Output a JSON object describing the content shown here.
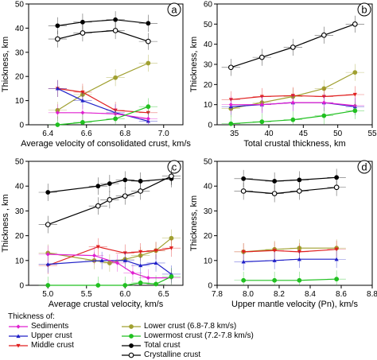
{
  "legend": {
    "title": "Thickness of:",
    "items": [
      {
        "label": "Sediments",
        "color": "#e020d0",
        "marker": "diamond-filled"
      },
      {
        "label": "Upper crust",
        "color": "#2020c8",
        "marker": "triangle-filled"
      },
      {
        "label": "Middle crust",
        "color": "#e02020",
        "marker": "triangle-down-filled"
      },
      {
        "label": "Lower crust (6.8-7.8 km/s)",
        "color": "#a0a030",
        "marker": "circle-filled"
      },
      {
        "label": "Lowermost crust (7.2-7.8 km/s)",
        "color": "#20c020",
        "marker": "circle-filled"
      },
      {
        "label": "Total crust",
        "color": "#000000",
        "marker": "circle-filled"
      },
      {
        "label": "Crystalline crust",
        "color": "#000000",
        "marker": "circle-open"
      }
    ]
  },
  "chart_data": [
    {
      "panel": "a",
      "type": "line",
      "xlabel": "Average velocity of consolidated crust, km/s",
      "ylabel": "Thickness, km",
      "xlim": [
        6.3,
        7.1
      ],
      "ylim": [
        0,
        50
      ],
      "xticks": [
        "6.4",
        "6.6",
        "6.8",
        "7.0"
      ],
      "yticks": [
        "0",
        "10",
        "20",
        "30",
        "40",
        "50"
      ],
      "series": [
        {
          "name": "Total crust",
          "x": [
            6.45,
            6.58,
            6.75,
            6.92
          ],
          "y": [
            41,
            42.5,
            43.5,
            42
          ]
        },
        {
          "name": "Crystalline crust",
          "x": [
            6.45,
            6.58,
            6.75,
            6.92
          ],
          "y": [
            35.5,
            38,
            39,
            34.5
          ]
        },
        {
          "name": "Lower crust (6.8-7.8 km/s)",
          "x": [
            6.45,
            6.58,
            6.75,
            6.92
          ],
          "y": [
            6,
            12.5,
            19.5,
            25.5
          ]
        },
        {
          "name": "Middle crust",
          "x": [
            6.45,
            6.58,
            6.75,
            6.92
          ],
          "y": [
            15,
            13.5,
            6,
            5
          ]
        },
        {
          "name": "Upper crust",
          "x": [
            6.45,
            6.58,
            6.75,
            6.92
          ],
          "y": [
            15,
            10,
            5,
            1.5
          ]
        },
        {
          "name": "Sediments",
          "x": [
            6.45,
            6.58,
            6.75,
            6.92
          ],
          "y": [
            5,
            5,
            4.5,
            2.5
          ]
        },
        {
          "name": "Lowermost crust (7.2-7.8 km/s)",
          "x": [
            6.45,
            6.58,
            6.75,
            6.92
          ],
          "y": [
            0,
            1,
            2.5,
            7.5
          ]
        }
      ]
    },
    {
      "panel": "b",
      "type": "line",
      "xlabel": "Total crustal thickness, km",
      "ylabel": "Thickness, km",
      "xlim": [
        32.5,
        55
      ],
      "ylim": [
        0,
        60
      ],
      "xticks": [
        "35",
        "40",
        "45",
        "50",
        "55"
      ],
      "yticks": [
        "0",
        "10",
        "20",
        "30",
        "40",
        "50",
        "60"
      ],
      "series": [
        {
          "name": "Crystalline crust",
          "x": [
            34.5,
            39,
            43.5,
            48,
            52.5
          ],
          "y": [
            28.5,
            33.5,
            38.5,
            44.5,
            50
          ]
        },
        {
          "name": "Lower crust (6.8-7.8 km/s)",
          "x": [
            34.5,
            39,
            43.5,
            48,
            52.5
          ],
          "y": [
            8,
            11,
            14,
            18,
            26
          ]
        },
        {
          "name": "Middle crust",
          "x": [
            34.5,
            39,
            43.5,
            48,
            52.5
          ],
          "y": [
            12.5,
            14,
            14.5,
            14,
            15
          ]
        },
        {
          "name": "Upper crust",
          "x": [
            34.5,
            39,
            43.5,
            48,
            52.5
          ],
          "y": [
            9,
            10,
            11,
            11,
            9
          ]
        },
        {
          "name": "Sediments",
          "x": [
            34.5,
            39,
            43.5,
            48,
            52.5
          ],
          "y": [
            10,
            10,
            11,
            11,
            9.5
          ]
        },
        {
          "name": "Lowermost crust (7.2-7.8 km/s)",
          "x": [
            34.5,
            39,
            43.5,
            48,
            52.5
          ],
          "y": [
            0.5,
            1.5,
            2.5,
            4.5,
            7
          ]
        }
      ]
    },
    {
      "panel": "c",
      "type": "line",
      "xlabel": "Average crustal velocity, km/s",
      "ylabel": "Thickness , km",
      "xlim": [
        4.75,
        6.75
      ],
      "ylim": [
        0,
        50
      ],
      "xticks": [
        "5.0",
        "5.5",
        "6.0",
        "6.5"
      ],
      "yticks": [
        "0",
        "10",
        "20",
        "30",
        "40",
        "50"
      ],
      "series": [
        {
          "name": "Total crust",
          "x": [
            5.0,
            5.65,
            5.8,
            6.0,
            6.2,
            6.6
          ],
          "y": [
            37.5,
            40,
            41,
            42.5,
            42,
            43
          ]
        },
        {
          "name": "Crystalline crust",
          "x": [
            5.0,
            5.65,
            5.8,
            6.0,
            6.2,
            6.6
          ],
          "y": [
            24.5,
            32,
            34.5,
            36,
            38,
            44
          ]
        },
        {
          "name": "Lower crust (6.8-7.8 km/s)",
          "x": [
            5.0,
            5.6,
            5.8,
            6.0,
            6.2,
            6.4,
            6.6
          ],
          "y": [
            13,
            10,
            9,
            10.5,
            12,
            14,
            19
          ]
        },
        {
          "name": "Middle crust",
          "x": [
            5.0,
            5.65,
            6.0,
            6.2,
            6.4,
            6.6
          ],
          "y": [
            8,
            15.5,
            13,
            13.5,
            14,
            15
          ]
        },
        {
          "name": "Upper crust",
          "x": [
            5.0,
            5.7,
            6.0,
            6.2,
            6.4,
            6.6
          ],
          "y": [
            8.5,
            10,
            10,
            8,
            9,
            4.5
          ]
        },
        {
          "name": "Sediments",
          "x": [
            5.0,
            5.6,
            5.9,
            6.1,
            6.3,
            6.6
          ],
          "y": [
            12.5,
            12,
            9,
            5,
            3,
            3
          ]
        },
        {
          "name": "Lowermost crust (7.2-7.8 km/s)",
          "x": [
            5.0,
            5.65,
            6.0,
            6.2,
            6.4,
            6.6
          ],
          "y": [
            0,
            0,
            0,
            1,
            0.5,
            3.5
          ]
        }
      ]
    },
    {
      "panel": "d",
      "type": "line",
      "xlabel": "Upper mantle velocity (Pn), km/s",
      "ylabel": "Thickness, km",
      "xlim": [
        7.8,
        8.8
      ],
      "ylim": [
        0,
        50
      ],
      "xticks": [
        "7.8",
        "8.0",
        "8.2",
        "8.4",
        "8.6",
        "8.8"
      ],
      "yticks": [
        "0",
        "10",
        "20",
        "30",
        "40",
        "50"
      ],
      "series": [
        {
          "name": "Total crust",
          "x": [
            7.97,
            8.17,
            8.33,
            8.57
          ],
          "y": [
            43,
            42,
            42.5,
            43.5
          ]
        },
        {
          "name": "Crystalline crust",
          "x": [
            7.97,
            8.17,
            8.33,
            8.57
          ],
          "y": [
            38,
            37,
            38,
            39.5
          ]
        },
        {
          "name": "Lower crust (6.8-7.8 km/s)",
          "x": [
            7.97,
            8.17,
            8.33,
            8.57
          ],
          "y": [
            13.5,
            14.5,
            15,
            15
          ]
        },
        {
          "name": "Middle crust",
          "x": [
            7.97,
            8.17,
            8.33,
            8.57
          ],
          "y": [
            13.5,
            14,
            13.5,
            14.5
          ]
        },
        {
          "name": "Upper crust",
          "x": [
            7.97,
            8.17,
            8.33,
            8.57
          ],
          "y": [
            9.5,
            10,
            10.5,
            10.5
          ]
        },
        {
          "name": "Lowermost crust (7.2-7.8 km/s)",
          "x": [
            7.97,
            8.17,
            8.33,
            8.57
          ],
          "y": [
            2,
            2,
            2,
            2.5
          ]
        }
      ]
    }
  ]
}
